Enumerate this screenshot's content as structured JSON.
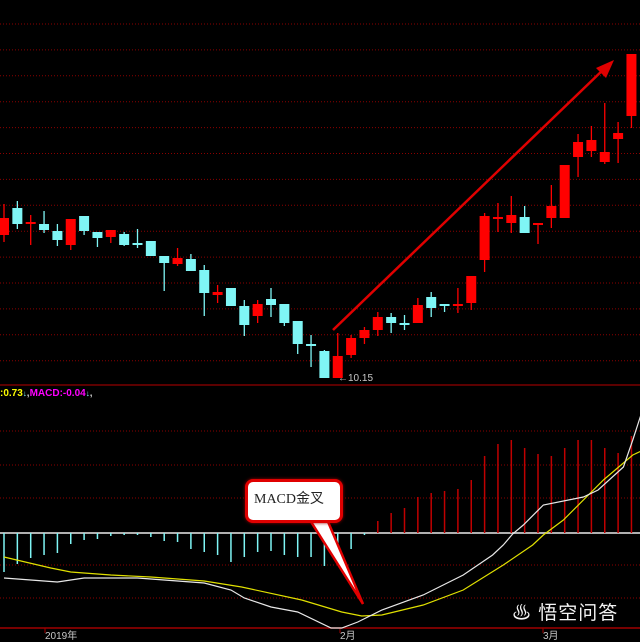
{
  "chart_data": [
    {
      "type": "candlestick",
      "title": "",
      "colors": {
        "up": "#ff0000",
        "down": "#7ff5f5",
        "grid": "#8b0000",
        "arrow": "#e00000"
      },
      "grid": true,
      "annotations": {
        "low_marker": "10.15",
        "trend_arrow": "up"
      },
      "ohlc": [
        [
          13.01,
          13.63,
          12.87,
          13.35
        ],
        [
          13.55,
          13.69,
          13.13,
          13.23
        ],
        [
          13.23,
          13.41,
          12.81,
          13.27
        ],
        [
          13.23,
          13.49,
          13.05,
          13.11
        ],
        [
          13.09,
          13.23,
          12.79,
          12.91
        ],
        [
          12.81,
          13.33,
          12.71,
          13.33
        ],
        [
          13.39,
          13.39,
          13.01,
          13.09
        ],
        [
          13.07,
          13.07,
          12.77,
          12.95
        ],
        [
          12.97,
          13.11,
          12.85,
          13.11
        ],
        [
          13.03,
          13.07,
          12.79,
          12.81
        ],
        [
          12.85,
          13.13,
          12.75,
          12.85
        ],
        [
          12.89,
          12.89,
          12.59,
          12.59
        ],
        [
          12.59,
          12.59,
          11.89,
          12.45
        ],
        [
          12.43,
          12.75,
          12.39,
          12.55
        ],
        [
          12.53,
          12.63,
          12.29,
          12.29
        ],
        [
          12.31,
          12.41,
          11.39,
          11.85
        ],
        [
          11.81,
          12.01,
          11.65,
          11.87
        ],
        [
          11.95,
          11.95,
          11.59,
          11.59
        ],
        [
          11.59,
          11.71,
          10.99,
          11.21
        ],
        [
          11.39,
          11.71,
          11.25,
          11.63
        ],
        [
          11.73,
          11.95,
          11.37,
          11.61
        ],
        [
          11.63,
          11.63,
          11.19,
          11.25
        ],
        [
          11.29,
          11.29,
          10.63,
          10.83
        ],
        [
          10.83,
          11.01,
          10.37,
          10.83
        ],
        [
          10.69,
          10.71,
          10.15,
          10.15
        ],
        [
          10.15,
          11.05,
          10.15,
          10.59
        ],
        [
          10.61,
          11.01,
          10.55,
          10.95
        ],
        [
          10.95,
          11.17,
          10.83,
          11.11
        ],
        [
          11.11,
          11.47,
          10.99,
          11.37
        ],
        [
          11.37,
          11.45,
          11.05,
          11.25
        ],
        [
          11.25,
          11.41,
          11.11,
          11.25
        ],
        [
          11.25,
          11.75,
          11.25,
          11.61
        ],
        [
          11.77,
          11.87,
          11.37,
          11.55
        ],
        [
          11.63,
          11.63,
          11.47,
          11.61
        ],
        [
          11.61,
          11.95,
          11.45,
          11.63
        ],
        [
          11.65,
          12.19,
          11.51,
          12.19
        ],
        [
          12.51,
          13.45,
          12.27,
          13.39
        ],
        [
          13.35,
          13.65,
          13.07,
          13.37
        ],
        [
          13.25,
          13.79,
          13.05,
          13.41
        ],
        [
          13.37,
          13.59,
          13.05,
          13.05
        ],
        [
          13.23,
          13.23,
          12.83,
          13.25
        ],
        [
          13.35,
          14.01,
          13.15,
          13.59
        ],
        [
          13.35,
          14.41,
          13.35,
          14.41
        ],
        [
          14.57,
          15.03,
          14.17,
          14.87
        ],
        [
          14.69,
          15.19,
          14.57,
          14.91
        ],
        [
          14.47,
          15.65,
          14.43,
          14.67
        ],
        [
          14.93,
          15.27,
          14.45,
          15.05
        ],
        [
          15.39,
          16.63,
          15.15,
          16.63
        ]
      ],
      "doji_colors": {
        "10": "down",
        "23": "down",
        "30": "down",
        "33": "down"
      }
    },
    {
      "type": "macd",
      "header": {
        "prefix_value": ":0.73",
        "macd_label": "MACD:-0.04",
        "sep": ",",
        "arrow": "↓"
      },
      "colors": {
        "dif": "#e8e8e8",
        "dea": "#e0e000",
        "hist_up": "#c00000",
        "hist_down": "#7ff5f5",
        "zero": "#b0b0b0",
        "header_value": "#ffff00",
        "header_macd": "#ff00ff"
      },
      "histogram": [
        -0.39,
        -0.31,
        -0.25,
        -0.22,
        -0.2,
        -0.11,
        -0.07,
        -0.06,
        -0.03,
        -0.02,
        -0.02,
        -0.04,
        -0.08,
        -0.09,
        -0.16,
        -0.19,
        -0.22,
        -0.29,
        -0.24,
        -0.19,
        -0.18,
        -0.22,
        -0.24,
        -0.24,
        -0.33,
        -0.17,
        -0.16,
        -0.02,
        0.12,
        0.2,
        0.25,
        0.36,
        0.4,
        0.42,
        0.44,
        0.53,
        0.77,
        0.89,
        0.93,
        0.85,
        0.79,
        0.77,
        0.85,
        0.93,
        0.93,
        0.85,
        0.8,
        0.97
      ],
      "dif": {
        "x": [
          0,
          4,
          6,
          10,
          15,
          17,
          18,
          20,
          22,
          24.5,
          25.3,
          26.5,
          28.3,
          31.4,
          34.4,
          36.6,
          37.4,
          38.1,
          38.9,
          40.4,
          43.4,
          44.5,
          46.4,
          47.1,
          47.9
        ],
        "y": [
          -0.45,
          -0.49,
          -0.45,
          -0.45,
          -0.5,
          -0.57,
          -0.65,
          -0.74,
          -0.79,
          -0.95,
          -0.95,
          -0.89,
          -0.77,
          -0.62,
          -0.42,
          -0.22,
          -0.12,
          -0.01,
          0.08,
          0.28,
          0.36,
          0.43,
          0.66,
          0.93,
          1.26
        ]
      },
      "dea": {
        "x": [
          0,
          3.5,
          5,
          8,
          11,
          15,
          17.8,
          22.3,
          25.3,
          26.8,
          28.3,
          31.4,
          34.4,
          37.4,
          39.6,
          40.4,
          41.9,
          44.9,
          47.1,
          47.9
        ],
        "y": [
          -0.24,
          -0.35,
          -0.39,
          -0.42,
          -0.44,
          -0.48,
          -0.54,
          -0.67,
          -0.79,
          -0.83,
          -0.82,
          -0.72,
          -0.57,
          -0.32,
          -0.12,
          -0.02,
          0.13,
          0.53,
          0.78,
          0.83
        ]
      },
      "callout": "MACD金叉"
    }
  ],
  "x_axis": {
    "labels": [
      "2019年",
      "2月",
      "3月"
    ]
  },
  "watermark": "悟空问答"
}
